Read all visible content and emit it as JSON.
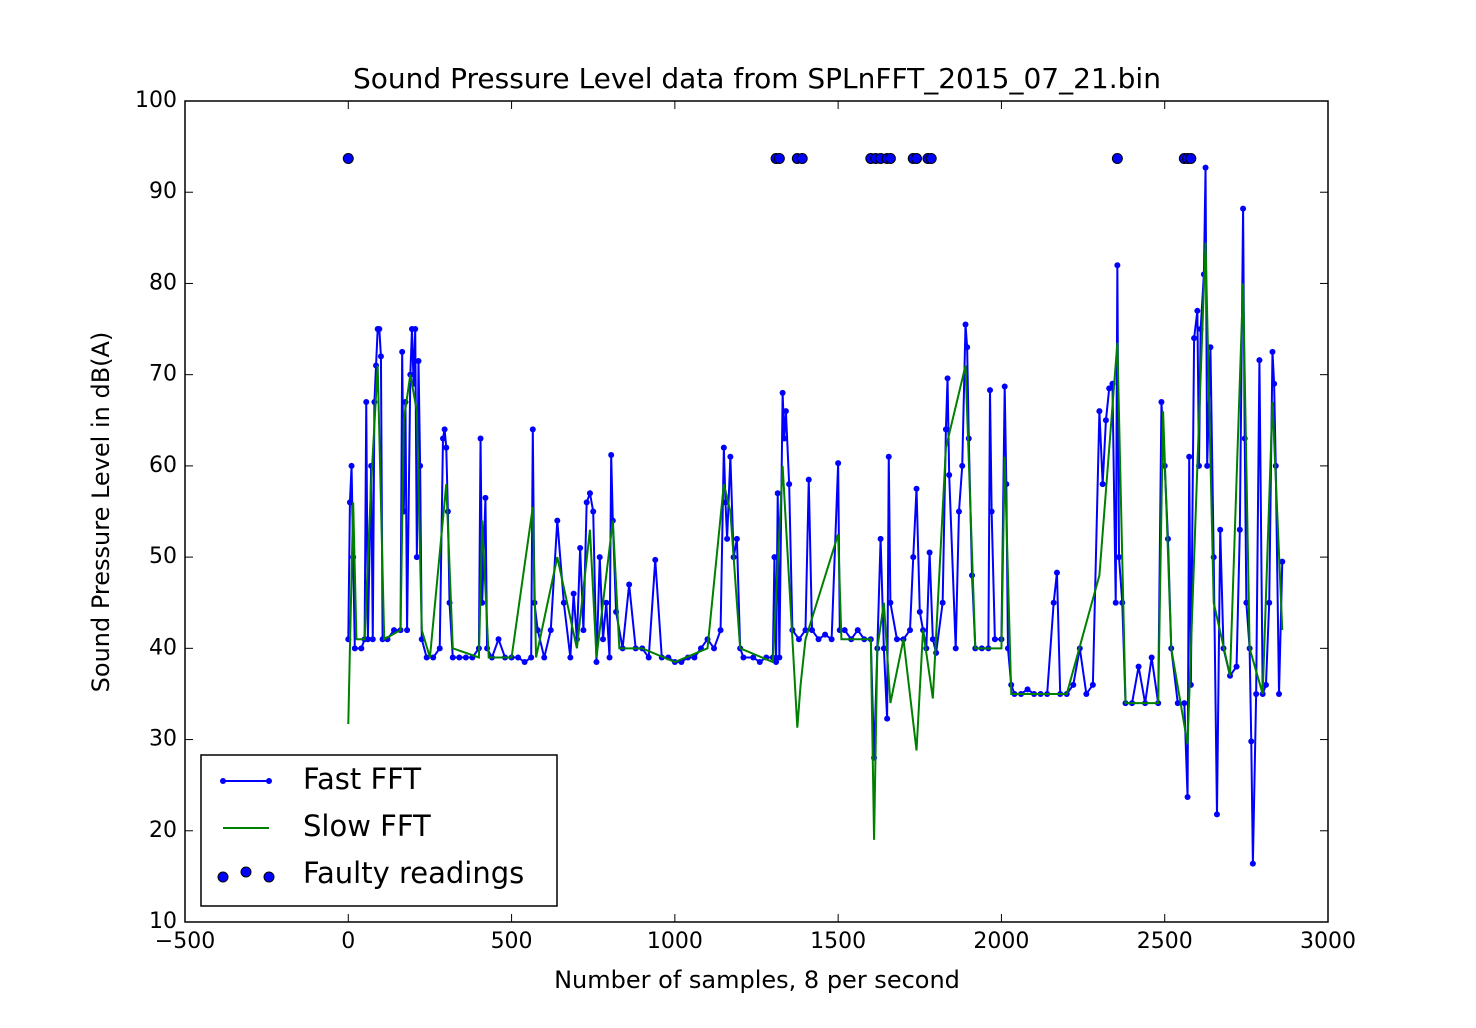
{
  "chart_data": {
    "type": "line",
    "title": "Sound Pressure Level data from SPLnFFT_2015_07_21.bin",
    "x_label": "Number of samples, 8 per second",
    "y_label": "Sound Pressure Level in dB(A)",
    "xlim": [
      -500,
      3000
    ],
    "ylim": [
      10,
      100
    ],
    "xticks": [
      {
        "value": -500,
        "label": "−500"
      },
      0,
      500,
      1000,
      1500,
      2000,
      2500,
      3000
    ],
    "yticks": [
      10,
      20,
      30,
      40,
      50,
      60,
      70,
      80,
      90,
      100
    ],
    "grid": false,
    "legend": "lower left",
    "series": [
      {
        "name": "Fast FFT",
        "color": "#0000ff",
        "kind": "line",
        "marker": true,
        "x": [
          0,
          5,
          10,
          15,
          20,
          40,
          50,
          55,
          60,
          70,
          75,
          80,
          85,
          90,
          95,
          100,
          105,
          120,
          140,
          160,
          165,
          170,
          175,
          180,
          190,
          195,
          200,
          205,
          210,
          215,
          220,
          225,
          240,
          260,
          280,
          290,
          295,
          300,
          305,
          310,
          320,
          340,
          360,
          380,
          400,
          405,
          410,
          420,
          425,
          440,
          460,
          480,
          500,
          520,
          540,
          560,
          565,
          570,
          580,
          600,
          620,
          640,
          660,
          680,
          690,
          700,
          710,
          720,
          730,
          740,
          750,
          760,
          770,
          780,
          790,
          800,
          805,
          810,
          820,
          840,
          860,
          880,
          900,
          920,
          940,
          960,
          980,
          1000,
          1020,
          1040,
          1060,
          1080,
          1100,
          1120,
          1140,
          1150,
          1155,
          1160,
          1170,
          1180,
          1190,
          1200,
          1210,
          1240,
          1260,
          1280,
          1300,
          1305,
          1310,
          1315,
          1320,
          1330,
          1335,
          1340,
          1350,
          1360,
          1380,
          1400,
          1410,
          1420,
          1440,
          1460,
          1480,
          1500,
          1505,
          1520,
          1540,
          1560,
          1580,
          1600,
          1610,
          1620,
          1630,
          1640,
          1650,
          1655,
          1660,
          1680,
          1700,
          1720,
          1730,
          1740,
          1750,
          1760,
          1770,
          1780,
          1790,
          1800,
          1820,
          1830,
          1835,
          1840,
          1860,
          1870,
          1880,
          1890,
          1895,
          1900,
          1910,
          1920,
          1940,
          1960,
          1965,
          1970,
          1980,
          2000,
          2010,
          2015,
          2020,
          2030,
          2040,
          2060,
          2080,
          2100,
          2120,
          2140,
          2160,
          2170,
          2180,
          2200,
          2220,
          2240,
          2260,
          2280,
          2300,
          2310,
          2320,
          2330,
          2340,
          2350,
          2355,
          2360,
          2370,
          2380,
          2400,
          2420,
          2440,
          2460,
          2480,
          2490,
          2500,
          2510,
          2520,
          2540,
          2560,
          2570,
          2575,
          2580,
          2590,
          2600,
          2605,
          2610,
          2620,
          2625,
          2630,
          2640,
          2650,
          2660,
          2670,
          2680,
          2700,
          2720,
          2730,
          2740,
          2745,
          2750,
          2760,
          2765,
          2770,
          2780,
          2790,
          2800,
          2810,
          2820,
          2830,
          2835,
          2840,
          2850,
          2860
        ],
        "values": [
          41,
          56,
          60,
          50,
          40,
          40,
          41,
          67,
          41,
          60,
          41,
          67,
          71,
          75,
          75,
          72,
          41,
          41,
          42,
          42,
          72.5,
          55,
          67,
          42,
          70,
          75,
          69,
          75,
          50,
          71.5,
          60,
          41,
          39,
          39,
          40,
          63,
          64,
          62,
          55,
          45,
          39,
          39,
          39,
          39,
          40,
          63,
          45,
          56.5,
          40,
          39,
          41,
          39,
          39,
          39,
          38.5,
          39,
          64,
          45,
          42,
          39,
          42,
          54,
          45,
          39,
          46,
          41,
          51,
          42,
          56,
          57,
          55,
          38.5,
          50,
          41,
          45,
          39,
          61.2,
          54,
          44,
          40,
          47,
          40,
          40,
          39,
          49.7,
          39,
          39,
          38.5,
          38.5,
          39,
          39,
          40,
          41,
          40,
          42,
          62,
          56,
          52,
          61,
          50,
          52,
          40,
          39,
          39,
          38.5,
          39,
          39,
          50,
          38.5,
          57,
          39,
          68,
          63,
          66,
          58,
          42,
          41,
          42,
          58.5,
          42,
          41,
          41.5,
          41,
          60.3,
          42,
          42,
          41,
          42,
          41,
          41,
          28,
          40,
          52,
          40,
          32.3,
          61,
          45,
          41,
          41,
          42,
          50,
          57.5,
          44,
          42,
          40,
          50.5,
          41,
          39.5,
          45,
          64,
          69.6,
          59,
          40,
          55,
          60,
          75.5,
          73,
          63,
          48,
          40,
          40,
          40,
          68.3,
          55,
          41,
          41,
          68.7,
          58,
          40,
          36,
          35,
          35,
          35.5,
          35,
          35,
          35,
          45,
          48.3,
          35,
          35,
          36,
          40,
          35,
          36,
          66,
          58,
          65,
          68.5,
          69,
          45,
          82,
          50,
          45,
          34,
          34,
          38,
          34,
          39,
          34,
          67,
          60,
          52,
          40,
          34,
          34,
          23.7,
          61,
          36,
          74,
          77,
          60,
          75,
          81,
          92.7,
          60,
          73,
          50,
          21.8,
          53,
          40,
          37,
          38,
          53,
          88.2,
          63,
          45,
          40,
          29.8,
          16.4,
          35,
          71.6,
          35,
          36,
          45,
          72.5,
          69,
          60,
          35,
          49.5
        ]
      },
      {
        "name": "Slow FFT",
        "color": "#008000",
        "kind": "line",
        "marker": false,
        "x": [
          0,
          5,
          15,
          25,
          50,
          70,
          90,
          110,
          160,
          170,
          190,
          210,
          225,
          250,
          300,
          320,
          400,
          410,
          430,
          500,
          565,
          575,
          640,
          700,
          740,
          760,
          810,
          830,
          900,
          1000,
          1100,
          1150,
          1170,
          1200,
          1300,
          1330,
          1360,
          1375,
          1385,
          1400,
          1500,
          1510,
          1600,
          1610,
          1620,
          1640,
          1660,
          1700,
          1740,
          1760,
          1790,
          1830,
          1890,
          1920,
          2000,
          2010,
          2030,
          2200,
          2300,
          2355,
          2380,
          2480,
          2495,
          2520,
          2570,
          2600,
          2625,
          2650,
          2700,
          2740,
          2760,
          2800,
          2830,
          2860
        ],
        "values": [
          31.7,
          40,
          56,
          41,
          41,
          58,
          71,
          41,
          42,
          65,
          70,
          66,
          42,
          39,
          58,
          40,
          39,
          54,
          39,
          39,
          55.5,
          39,
          50,
          40,
          53,
          39,
          54,
          40,
          40,
          38.5,
          40,
          58,
          55,
          40,
          38.5,
          60,
          41,
          31.3,
          36,
          41,
          52.5,
          41,
          41,
          19,
          40,
          45,
          34,
          41,
          28.8,
          42,
          34.5,
          62,
          71,
          40,
          40,
          61,
          35,
          35,
          48,
          73.5,
          34,
          34,
          66,
          40,
          29.5,
          60,
          84.5,
          45,
          37,
          80,
          40,
          35,
          67,
          42
        ]
      },
      {
        "name": "Faulty readings",
        "color": "#0000ff",
        "kind": "scatter",
        "marker": true,
        "x": [
          0,
          1310,
          1320,
          1375,
          1390,
          1600,
          1615,
          1630,
          1650,
          1660,
          1730,
          1740,
          1775,
          1785,
          2355,
          2560,
          2570,
          2580
        ],
        "values": [
          93.7,
          93.7,
          93.7,
          93.7,
          93.7,
          93.7,
          93.7,
          93.7,
          93.7,
          93.7,
          93.7,
          93.7,
          93.7,
          93.7,
          93.7,
          93.7,
          93.7,
          93.7
        ]
      }
    ]
  }
}
